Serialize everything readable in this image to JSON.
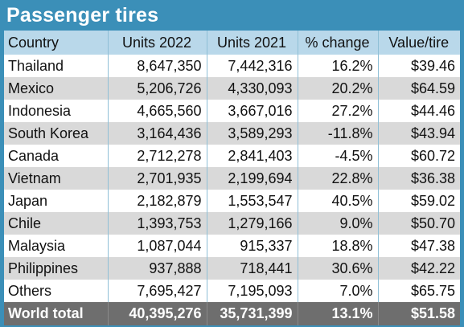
{
  "title": "Passenger tires",
  "chart_data": {
    "type": "table",
    "title": "Passenger tires",
    "columns": [
      "Country",
      "Units 2022",
      "Units 2021",
      "% change",
      "Value/tire"
    ],
    "rows": [
      [
        "Thailand",
        "8,647,350",
        "7,442,316",
        "16.2%",
        "$39.46"
      ],
      [
        "Mexico",
        "5,206,726",
        "4,330,093",
        "20.2%",
        "$64.59"
      ],
      [
        "Indonesia",
        "4,665,560",
        "3,667,016",
        "27.2%",
        "$44.46"
      ],
      [
        "South Korea",
        "3,164,436",
        "3,589,293",
        "-11.8%",
        "$43.94"
      ],
      [
        "Canada",
        "2,712,278",
        "2,841,403",
        "-4.5%",
        "$60.72"
      ],
      [
        "Vietnam",
        "2,701,935",
        "2,199,694",
        "22.8%",
        "$36.38"
      ],
      [
        "Japan",
        "2,182,879",
        "1,553,547",
        "40.5%",
        "$59.02"
      ],
      [
        "Chile",
        "1,393,753",
        "1,279,166",
        "9.0%",
        "$50.70"
      ],
      [
        "Malaysia",
        "1,087,044",
        "915,337",
        "18.8%",
        "$47.38"
      ],
      [
        "Philippines",
        "937,888",
        "718,441",
        "30.6%",
        "$42.22"
      ],
      [
        "Others",
        "7,695,427",
        "7,195,093",
        "7.0%",
        "$65.75"
      ]
    ],
    "total": [
      "World total",
      "40,395,276",
      "35,731,399",
      "13.1%",
      "$51.58"
    ]
  },
  "colors": {
    "frame": "#3b8fb8",
    "header": "#b9d8ea",
    "row_alt": "#d9d9d9",
    "total_row": "#6e6e6e"
  }
}
